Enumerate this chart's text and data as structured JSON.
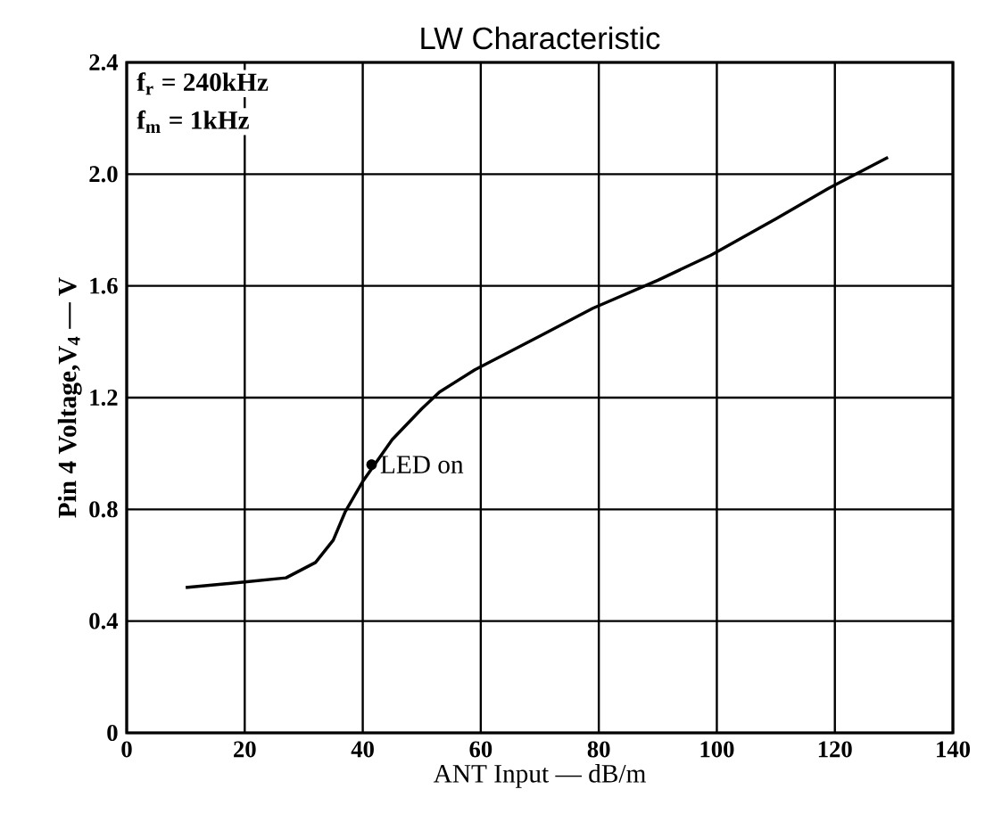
{
  "chart_data": {
    "type": "line",
    "title": "LW Characteristic",
    "xlabel": "ANT Input — dB/m",
    "ylabel": "Pin 4 Voltage,V$_{4}$ — V",
    "x": [
      10,
      20,
      27,
      32,
      35,
      37,
      40,
      45,
      50,
      53,
      59,
      70,
      79,
      90,
      99,
      110,
      119,
      129
    ],
    "series": [
      {
        "color": "#000000",
        "values": [
          0.52,
          0.54,
          0.555,
          0.61,
          0.69,
          0.79,
          0.9,
          1.05,
          1.16,
          1.22,
          1.3,
          1.42,
          1.52,
          1.62,
          1.71,
          1.84,
          1.95,
          2.06
        ]
      }
    ],
    "xlim": [
      0,
      140
    ],
    "xticks": [
      0,
      20,
      40,
      60,
      80,
      100,
      120,
      140
    ],
    "ylim": [
      0,
      2.4
    ],
    "yticks": [
      0,
      0.4,
      0.8,
      1.2,
      1.6,
      {
        "value": 2,
        "label": "2.0"
      },
      2.4
    ],
    "grid": true,
    "marker": "none",
    "line_style": "solid",
    "annotations": [
      "f$_{r}$ = 240kHz",
      "f$_{m}$ = 1kHz",
      {
        "text": "LED on",
        "x": 41.5,
        "y": 0.96
      }
    ]
  }
}
